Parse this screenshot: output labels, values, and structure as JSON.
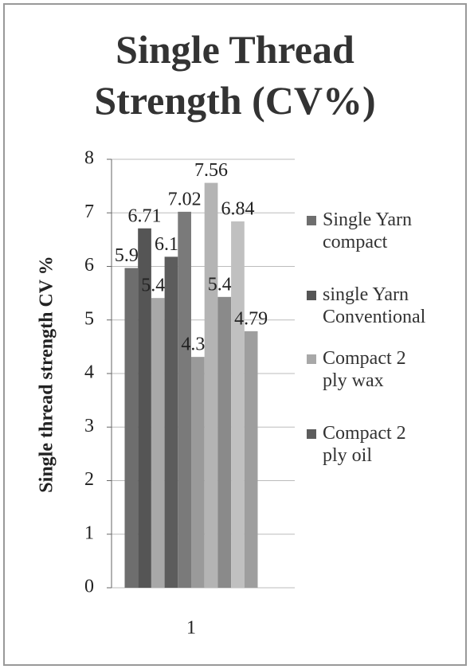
{
  "chart_data": {
    "type": "bar",
    "title": "Single Thread Strength (CV%)",
    "y_label": "Single thread strength CV %",
    "categories": [
      "1"
    ],
    "series": [
      {
        "name": "Single Yarn compact",
        "color": "#6e6e6e",
        "values": [
          5.97
        ]
      },
      {
        "name": "single Yarn Conventional",
        "color": "#555555",
        "values": [
          6.71
        ]
      },
      {
        "name": "Compact 2 ply wax",
        "color": "#a8a8a8",
        "values": [
          5.41
        ]
      },
      {
        "name": "Compact 2 ply oil",
        "color": "#5c5c5c",
        "values": [
          6.18
        ]
      },
      {
        "color": "#7a7a7a",
        "values": [
          7.02
        ]
      },
      {
        "color": "#9a9a9a",
        "values": [
          4.31
        ]
      },
      {
        "color": "#b4b4b4",
        "values": [
          7.56
        ]
      },
      {
        "color": "#8a8a8a",
        "values": [
          5.43
        ]
      },
      {
        "color": "#c0c0c0",
        "values": [
          6.84
        ]
      },
      {
        "color": "#9e9e9e",
        "values": [
          4.79
        ]
      }
    ],
    "ylim": [
      0,
      8
    ],
    "yticks": [
      0,
      1,
      2,
      3,
      4,
      5,
      6,
      7,
      8
    ],
    "grid": true
  }
}
